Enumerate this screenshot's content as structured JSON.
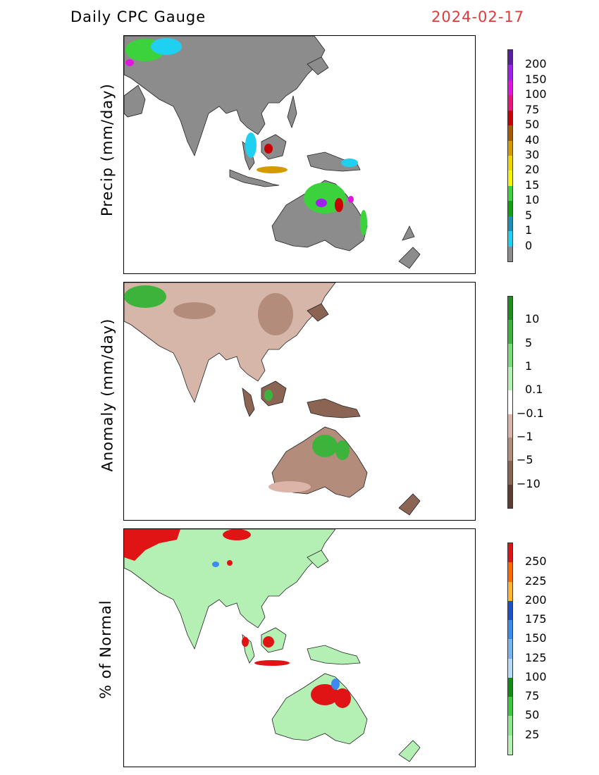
{
  "header": {
    "title_left": "Daily CPC Gauge",
    "date": "2024-02-17",
    "date_color": "#e03a3a"
  },
  "panels": [
    {
      "ylabel": "Precip (mm/day)",
      "colorbar": {
        "labels": [
          "200",
          "150",
          "100",
          "75",
          "50",
          "40",
          "30",
          "20",
          "15",
          "10",
          "5",
          "1",
          "0"
        ],
        "colors": [
          "#5a1f9e",
          "#a020f0",
          "#e016e0",
          "#e8177f",
          "#c80000",
          "#a85a00",
          "#d49a00",
          "#ecd700",
          "#f5f500",
          "#3cd23c",
          "#12a012",
          "#1e90b4",
          "#20d0f0",
          "#8c8c8c"
        ]
      }
    },
    {
      "ylabel": "Anomaly (mm/day)",
      "colorbar": {
        "labels": [
          "10",
          "5",
          "1",
          "0.1",
          "−0.1",
          "−1",
          "−5",
          "−10"
        ],
        "colors": [
          "#1e8c1e",
          "#3cb43c",
          "#78dc78",
          "#b4f0b4",
          "#ffffff",
          "#dcb4a8",
          "#b48c7c",
          "#8c6454",
          "#5c3c30"
        ]
      }
    },
    {
      "ylabel": "% of Normal",
      "colorbar": {
        "labels": [
          "250",
          "225",
          "200",
          "175",
          "150",
          "125",
          "100",
          "75",
          "50",
          "25"
        ],
        "colors": [
          "#e01414",
          "#ff6a00",
          "#ffb432",
          "#1e50c8",
          "#3c8cf0",
          "#78b4f0",
          "#b4dcf8",
          "#128c12",
          "#3cc83c",
          "#8ce68c",
          "#b4f0b4"
        ]
      }
    }
  ]
}
